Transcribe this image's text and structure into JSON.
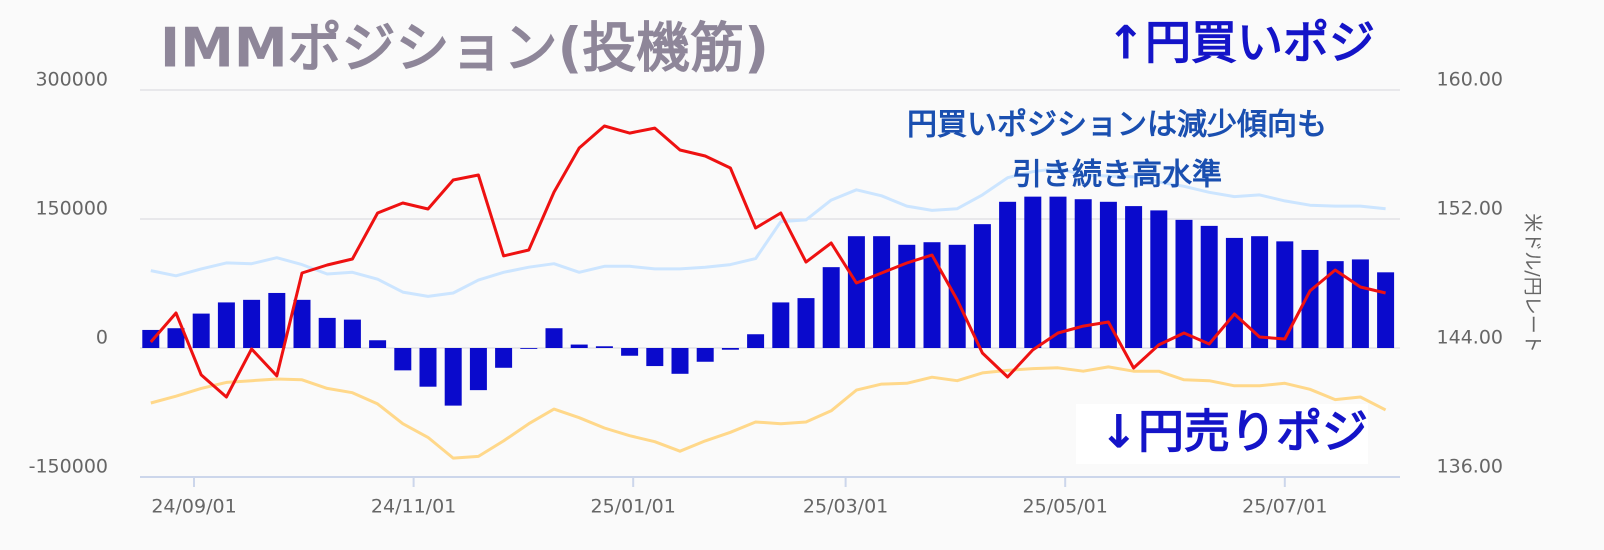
{
  "chart_data": {
    "type": "bar",
    "title": "IMMポジション(投機筋)",
    "annotations": [
      "↑円買いポジ",
      "円買いポジションは減少傾向も",
      "引き続き高水準",
      "↓円売りポジ"
    ],
    "y2label": "米ドル/円レート",
    "x": [
      "2024-08-20",
      "2024-08-27",
      "2024-09-03",
      "2024-09-10",
      "2024-09-17",
      "2024-09-24",
      "2024-10-01",
      "2024-10-08",
      "2024-10-15",
      "2024-10-22",
      "2024-10-29",
      "2024-11-05",
      "2024-11-12",
      "2024-11-19",
      "2024-11-26",
      "2024-12-03",
      "2024-12-10",
      "2024-12-17",
      "2024-12-24",
      "2024-12-31",
      "2025-01-07",
      "2025-01-14",
      "2025-01-21",
      "2025-01-28",
      "2025-02-04",
      "2025-02-11",
      "2025-02-18",
      "2025-02-25",
      "2025-03-04",
      "2025-03-11",
      "2025-03-18",
      "2025-03-25",
      "2025-04-01",
      "2025-04-08",
      "2025-04-15",
      "2025-04-22",
      "2025-04-29",
      "2025-05-06",
      "2025-05-13",
      "2025-05-20",
      "2025-05-27",
      "2025-06-03",
      "2025-06-10",
      "2025-06-17",
      "2025-06-24",
      "2025-07-01",
      "2025-07-08",
      "2025-07-15",
      "2025-07-22",
      "2025-07-29"
    ],
    "xlim": [
      "2024-08-17",
      "2025-08-02"
    ],
    "xticks": [
      {
        "value": "2024-09-01",
        "label": "24/09/01"
      },
      {
        "value": "2024-11-01",
        "label": "24/11/01"
      },
      {
        "value": "2025-01-01",
        "label": "25/01/01"
      },
      {
        "value": "2025-03-01",
        "label": "25/03/01"
      },
      {
        "value": "2025-05-01",
        "label": "25/05/01"
      },
      {
        "value": "2025-07-01",
        "label": "25/07/01"
      }
    ],
    "ylim": [
      -150000,
      300000
    ],
    "yticks": [
      -150000,
      0,
      150000,
      300000
    ],
    "y2lim": [
      136,
      160
    ],
    "y2ticks": [
      {
        "value": 136,
        "label": "136.00"
      },
      {
        "value": 144,
        "label": "144.00"
      },
      {
        "value": 152,
        "label": "152.00"
      },
      {
        "value": 160,
        "label": "160.00"
      }
    ],
    "grid": true,
    "series": [
      {
        "type": "bar",
        "color": "#0a0acc",
        "values": [
          21000,
          23000,
          40000,
          53000,
          56000,
          64000,
          56000,
          35000,
          33000,
          9000,
          -26000,
          -45000,
          -67000,
          -49000,
          -23000,
          -1000,
          23000,
          4000,
          2000,
          -9000,
          -21000,
          -30000,
          -16000,
          -2000,
          16000,
          53000,
          58000,
          94000,
          130000,
          130000,
          120000,
          123000,
          120000,
          144000,
          170000,
          176000,
          176000,
          173000,
          170000,
          165000,
          160000,
          149000,
          142000,
          128000,
          130000,
          124000,
          114000,
          101000,
          103000,
          88000
        ]
      },
      {
        "type": "line",
        "color": "#cce5ff",
        "values": [
          90000,
          84000,
          92000,
          99000,
          98000,
          105000,
          97000,
          86000,
          88000,
          80000,
          65000,
          60000,
          64000,
          79000,
          88000,
          94000,
          98000,
          88000,
          95000,
          95000,
          92000,
          92000,
          94000,
          97000,
          104000,
          147000,
          149000,
          172000,
          184000,
          177000,
          165000,
          160000,
          162000,
          178000,
          198000,
          205000,
          209000,
          201000,
          200000,
          199000,
          193000,
          188000,
          181000,
          176000,
          178000,
          171000,
          166000,
          165000,
          165000,
          162000
        ]
      },
      {
        "type": "line",
        "color": "#ffd88a",
        "values": [
          -64000,
          -56000,
          -47000,
          -40000,
          -38000,
          -36000,
          -37000,
          -47000,
          -52000,
          -65000,
          -88000,
          -104000,
          -128000,
          -126000,
          -108000,
          -88000,
          -71000,
          -81000,
          -93000,
          -102000,
          -109000,
          -120000,
          -108000,
          -98000,
          -86000,
          -88000,
          -86000,
          -73000,
          -49000,
          -42000,
          -41000,
          -34000,
          -38000,
          -29000,
          -26000,
          -24000,
          -23000,
          -27000,
          -22000,
          -27000,
          -27000,
          -37000,
          -38000,
          -44000,
          -44000,
          -41000,
          -48000,
          -60000,
          -57000,
          -72000
        ]
      },
      {
        "type": "line",
        "axis": "y2",
        "color": "#ee1111",
        "values": [
          144.37,
          146.17,
          142.33,
          140.96,
          143.94,
          142.27,
          148.65,
          149.15,
          149.52,
          152.37,
          152.99,
          152.62,
          154.42,
          154.73,
          149.71,
          150.08,
          153.67,
          156.4,
          157.77,
          157.33,
          157.64,
          156.28,
          155.91,
          155.16,
          151.44,
          152.37,
          149.33,
          150.51,
          148.03,
          148.65,
          149.27,
          149.77,
          146.98,
          143.69,
          142.2,
          143.88,
          144.93,
          145.36,
          145.61,
          142.76,
          144.19,
          144.93,
          144.25,
          146.11,
          144.68,
          144.56,
          147.54,
          148.84,
          147.78,
          147.41
        ]
      }
    ]
  }
}
